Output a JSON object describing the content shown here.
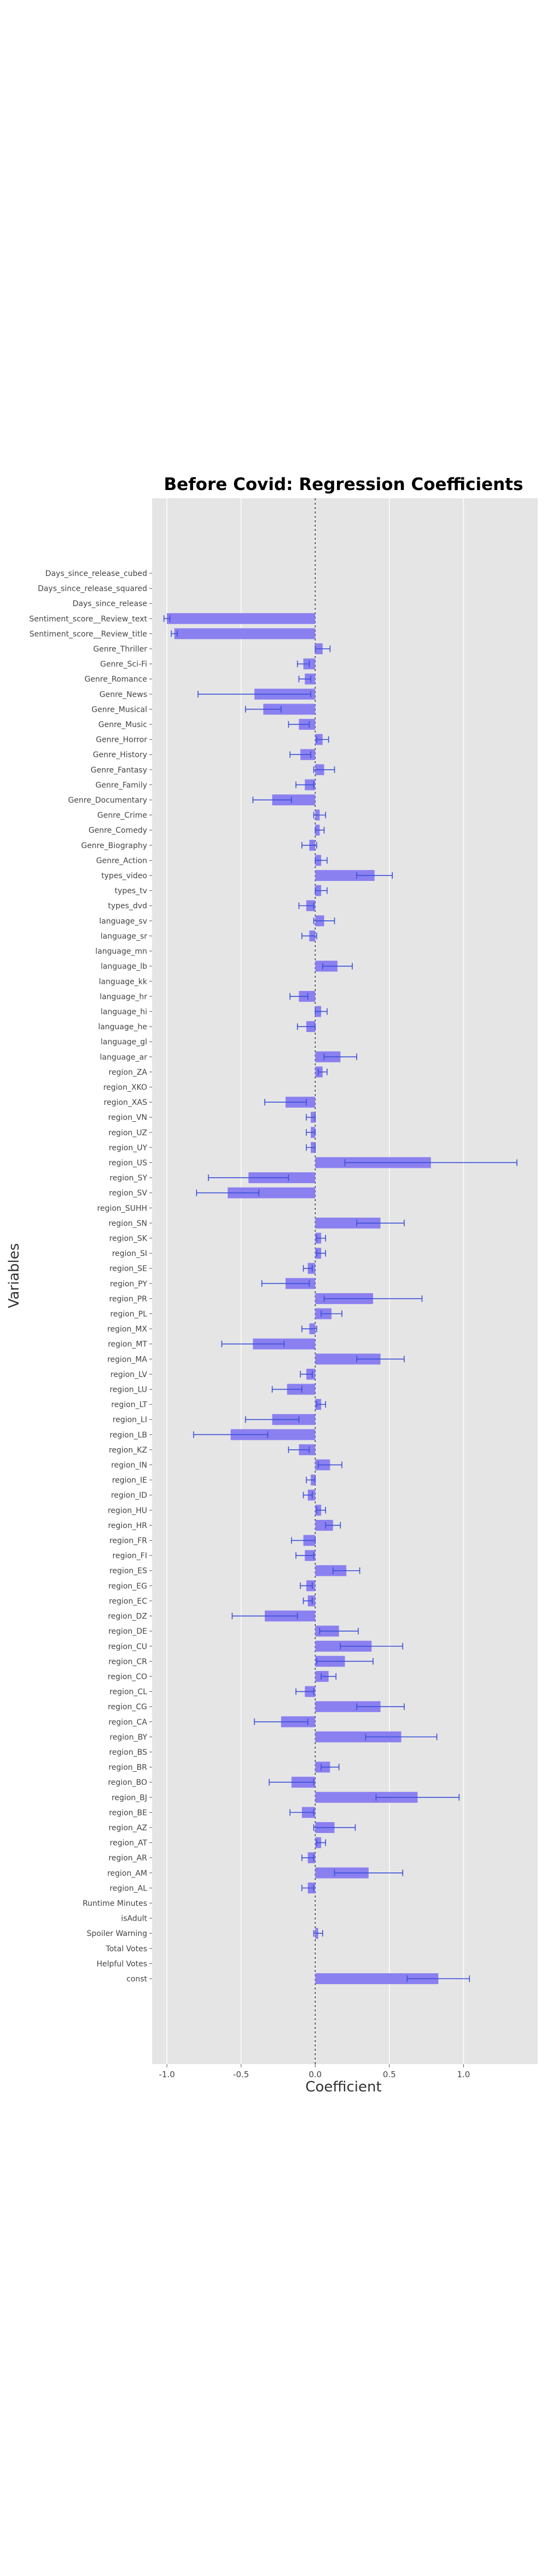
{
  "chart_data": {
    "type": "bar",
    "orientation": "horizontal",
    "title": "Before Covid: Regression Coefficients",
    "xlabel": "Coefficient",
    "ylabel": "Variables",
    "xlim": [
      -1.1,
      1.5
    ],
    "xticks": [
      -1.0,
      -0.5,
      0.0,
      0.5,
      1.0
    ],
    "xtick_labels": [
      "-1.0",
      "-0.5",
      "0.0",
      "0.5",
      "1.0"
    ],
    "grid": true,
    "reference_line": 0,
    "bar_color": "#8b80f0",
    "errorbar_color": "#3a4fd8",
    "background_color": "#e5e5e5",
    "categories": [
      "Days_since_release_cubed",
      "Days_since_release_squared",
      "Days_since_release",
      "Sentiment_score__Review_text",
      "Sentiment_score__Review_title",
      "Genre_Thriller",
      "Genre_Sci-Fi",
      "Genre_Romance",
      "Genre_News",
      "Genre_Musical",
      "Genre_Music",
      "Genre_Horror",
      "Genre_History",
      "Genre_Fantasy",
      "Genre_Family",
      "Genre_Documentary",
      "Genre_Crime",
      "Genre_Comedy",
      "Genre_Biography",
      "Genre_Action",
      "types_video",
      "types_tv",
      "types_dvd",
      "language_sv",
      "language_sr",
      "language_mn",
      "language_lb",
      "language_kk",
      "language_hr",
      "language_hi",
      "language_he",
      "language_gl",
      "language_ar",
      "region_ZA",
      "region_XKO",
      "region_XAS",
      "region_VN",
      "region_UZ",
      "region_UY",
      "region_US",
      "region_SY",
      "region_SV",
      "region_SUHH",
      "region_SN",
      "region_SK",
      "region_SI",
      "region_SE",
      "region_PY",
      "region_PR",
      "region_PL",
      "region_MX",
      "region_MT",
      "region_MA",
      "region_LV",
      "region_LU",
      "region_LT",
      "region_LI",
      "region_LB",
      "region_KZ",
      "region_IN",
      "region_IE",
      "region_ID",
      "region_HU",
      "region_HR",
      "region_FR",
      "region_FI",
      "region_ES",
      "region_EG",
      "region_EC",
      "region_DZ",
      "region_DE",
      "region_CU",
      "region_CR",
      "region_CO",
      "region_CL",
      "region_CG",
      "region_CA",
      "region_BY",
      "region_BS",
      "region_BR",
      "region_BO",
      "region_BJ",
      "region_BE",
      "region_AZ",
      "region_AT",
      "region_AR",
      "region_AM",
      "region_AL",
      "Runtime Minutes",
      "isAdult",
      "Spoiler Warning",
      "Total Votes",
      "Helpful Votes",
      "const"
    ],
    "values": [
      0,
      0,
      0,
      -1.0,
      -0.95,
      0.05,
      -0.08,
      -0.07,
      -0.41,
      -0.35,
      -0.11,
      0.05,
      -0.1,
      0.06,
      -0.07,
      -0.29,
      0.03,
      0.03,
      -0.04,
      0.04,
      0.4,
      0.04,
      -0.06,
      0.06,
      -0.04,
      0,
      0.15,
      0.0,
      -0.11,
      0.04,
      -0.06,
      0,
      0.17,
      0.05,
      0,
      -0.2,
      -0.03,
      -0.03,
      -0.03,
      0.78,
      -0.45,
      -0.59,
      0,
      0.44,
      0.04,
      0.04,
      -0.05,
      -0.2,
      0.39,
      0.11,
      -0.04,
      -0.42,
      0.44,
      -0.06,
      -0.19,
      0.04,
      -0.29,
      -0.57,
      -0.11,
      0.1,
      -0.03,
      -0.05,
      0.04,
      0.12,
      -0.08,
      -0.07,
      0.21,
      -0.06,
      -0.05,
      -0.34,
      0.16,
      0.38,
      0.2,
      0.09,
      -0.07,
      0.44,
      -0.23,
      0.58,
      0,
      0.1,
      -0.16,
      0.69,
      -0.09,
      0.13,
      0.04,
      -0.05,
      0.36,
      -0.05,
      0,
      0,
      0.02,
      0,
      0,
      0.83
    ],
    "errors": [
      0,
      0,
      0,
      0.02,
      0.02,
      0.05,
      0.04,
      0.04,
      0.38,
      0.12,
      0.07,
      0.04,
      0.07,
      0.07,
      0.06,
      0.13,
      0.04,
      0.03,
      0.05,
      0.04,
      0.12,
      0.04,
      0.05,
      0.07,
      0.05,
      0,
      0.1,
      0,
      0.06,
      0.04,
      0.06,
      0,
      0.11,
      0.03,
      0,
      0.14,
      0.03,
      0.03,
      0.03,
      0.58,
      0.27,
      0.21,
      0,
      0.16,
      0.03,
      0.03,
      0.03,
      0.16,
      0.33,
      0.07,
      0.05,
      0.21,
      0.16,
      0.04,
      0.1,
      0.03,
      0.18,
      0.25,
      0.07,
      0.08,
      0.03,
      0.03,
      0.03,
      0.05,
      0.08,
      0.06,
      0.09,
      0.04,
      0.03,
      0.22,
      0.13,
      0.21,
      0.19,
      0.05,
      0.06,
      0.16,
      0.18,
      0.24,
      0,
      0.06,
      0.15,
      0.28,
      0.08,
      0.14,
      0.03,
      0.04,
      0.23,
      0.04,
      0,
      0,
      0.03,
      0,
      0,
      0.21
    ]
  }
}
